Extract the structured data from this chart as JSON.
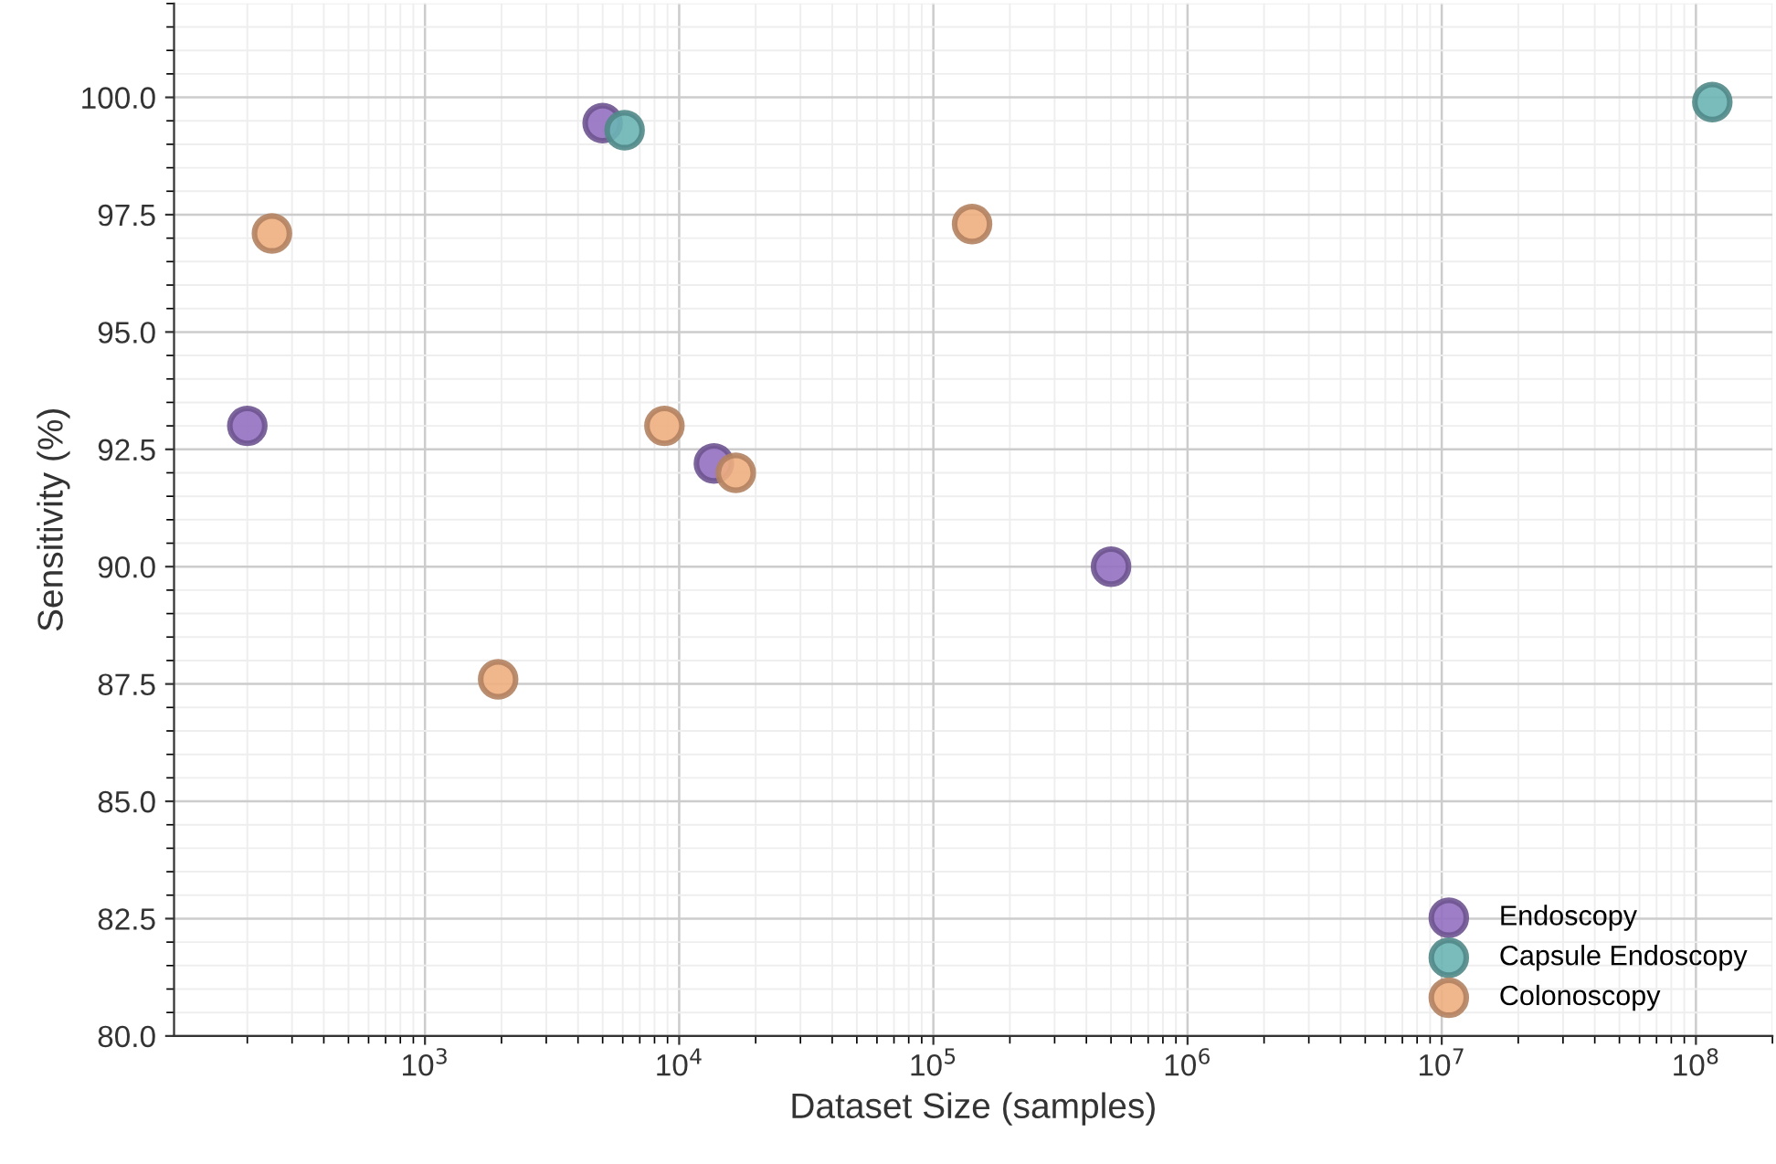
{
  "chart_data": {
    "type": "scatter",
    "xlabel": "Dataset Size (samples)",
    "ylabel": "Sensitivity (%)",
    "log": "x",
    "xlim": [
      103,
      200000000
    ],
    "ylim": [
      80,
      102
    ],
    "xticks": [
      {
        "value": 1000,
        "label": "10$^{3}$"
      },
      {
        "value": 10000,
        "label": "10$^{4}$"
      },
      {
        "value": 100000,
        "label": "10$^{5}$"
      },
      {
        "value": 1000000,
        "label": "10$^{6}$"
      },
      {
        "value": 10000000,
        "label": "10$^{7}$"
      },
      {
        "value": 100000000,
        "label": "10$^{8}$"
      }
    ],
    "yticks": [
      {
        "value": 80,
        "label": "80.0"
      },
      {
        "value": 82.5,
        "label": "82.5"
      },
      {
        "value": 85,
        "label": "85.0"
      },
      {
        "value": 87.5,
        "label": "87.5"
      },
      {
        "value": 90,
        "label": "90.0"
      },
      {
        "value": 92.5,
        "label": "92.5"
      },
      {
        "value": 95,
        "label": "95.0"
      },
      {
        "value": 97.5,
        "label": "97.5"
      },
      {
        "value": 100,
        "label": "100.0"
      }
    ],
    "grid": true,
    "legend": "bottom right",
    "marker": "circle",
    "series": [
      {
        "name": "Endoscopy",
        "color": "#9370c0",
        "x": [
          200,
          5000,
          13700,
          500000
        ],
        "values": [
          93.0,
          99.45,
          92.2,
          90.0
        ]
      },
      {
        "name": "Capsule Endoscopy",
        "color": "#6cb5b5",
        "x": [
          6100,
          116000000
        ],
        "values": [
          99.3,
          99.9
        ]
      },
      {
        "name": "Colonoscopy",
        "color": "#eeae80",
        "x": [
          250,
          1940,
          8750,
          16700,
          142000
        ],
        "values": [
          97.1,
          87.6,
          93.0,
          92.0,
          97.3
        ]
      }
    ]
  }
}
